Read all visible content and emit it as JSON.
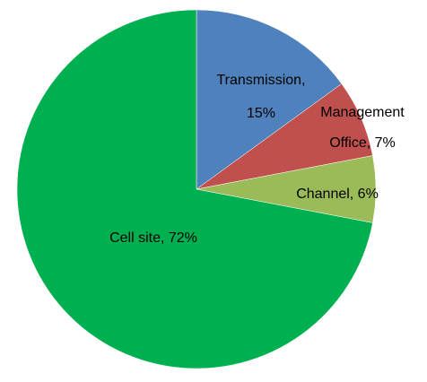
{
  "chart_data": {
    "type": "pie",
    "title": "",
    "slices": [
      {
        "name": "Transmission",
        "value": 15,
        "color": "#4f81bd",
        "label_lines": [
          "Transmission,",
          "15%"
        ]
      },
      {
        "name": "Management Office",
        "value": 7,
        "color": "#c0504d",
        "label_lines": [
          "Management",
          "Office, 7%"
        ]
      },
      {
        "name": "Channel",
        "value": 6,
        "color": "#9bbb59",
        "label_lines": [
          "Channel, 6%"
        ]
      },
      {
        "name": "Cell site",
        "value": 72,
        "color": "#00b050",
        "label_lines": [
          "Cell site, 72%"
        ]
      }
    ],
    "start_angle_deg": 0,
    "direction": "clockwise",
    "legend": "none",
    "data_labels": "inside"
  }
}
